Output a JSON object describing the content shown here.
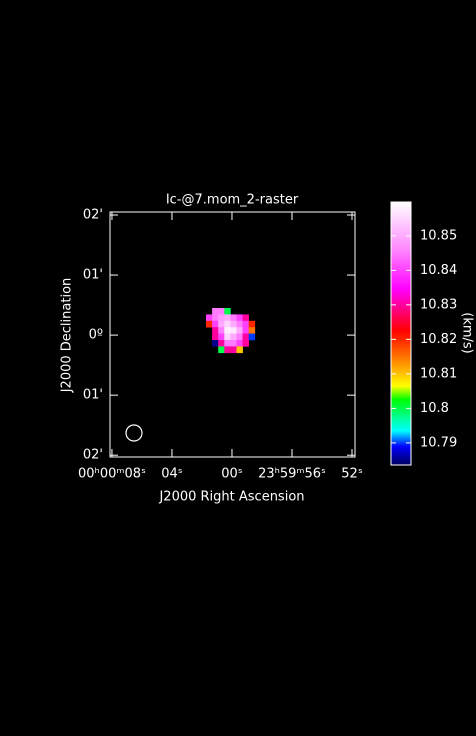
{
  "chart_data": {
    "type": "raster",
    "title": "Ic-@7.mom_2-raster",
    "x_label": "J2000 Right Ascension",
    "y_label": "J2000 Declination",
    "xlim": [
      8.13,
      -8.2
    ],
    "xticks": [
      {
        "value": 8,
        "label": "00ʰ00ᵐ08ˢ"
      },
      {
        "value": 4,
        "label": "04ˢ"
      },
      {
        "value": 0,
        "label": "00ˢ"
      },
      {
        "value": -4,
        "label": "23ʰ59ᵐ56ˢ"
      },
      {
        "value": -8,
        "label": "52ˢ"
      }
    ],
    "ylim": [
      -2.03,
      2.05
    ],
    "yticks": [
      {
        "value": 2,
        "label": "02'"
      },
      {
        "value": 1,
        "label": "01'"
      },
      {
        "value": 0,
        "label": "0º"
      },
      {
        "value": -1,
        "label": "01'"
      },
      {
        "value": -2,
        "label": "02'"
      }
    ],
    "pixels": [
      [
        null,
        10.845,
        10.845,
        10.8,
        null,
        null,
        null,
        null,
        null
      ],
      [
        10.84,
        10.845,
        10.848,
        10.85,
        10.845,
        10.84,
        10.83,
        null,
        null
      ],
      [
        10.82,
        10.84,
        10.85,
        10.855,
        10.85,
        10.845,
        10.84,
        10.82,
        null
      ],
      [
        null,
        10.83,
        10.845,
        10.858,
        10.857,
        10.85,
        10.84,
        10.815,
        null
      ],
      [
        null,
        10.83,
        10.84,
        10.855,
        10.85,
        10.845,
        10.83,
        10.79,
        null
      ],
      [
        null,
        10.785,
        10.83,
        10.845,
        10.845,
        10.84,
        10.83,
        null,
        null
      ],
      [
        null,
        null,
        10.8,
        10.83,
        10.83,
        10.81,
        null,
        null,
        null
      ]
    ],
    "colorbar": {
      "label": "(km/s)",
      "lim": [
        10.7836,
        10.8598
      ],
      "ticks": [
        10.85,
        10.84,
        10.83,
        10.82,
        10.81,
        10.8,
        10.79
      ]
    },
    "colormap": [
      {
        "at": 0,
        "color": "#000060"
      },
      {
        "at": 0.07,
        "color": "#0000ff"
      },
      {
        "at": 0.13,
        "color": "#00ffff"
      },
      {
        "at": 0.25,
        "color": "#00ff00"
      },
      {
        "at": 0.3,
        "color": "#ffff00"
      },
      {
        "at": 0.38,
        "color": "#ff9900"
      },
      {
        "at": 0.51,
        "color": "#ff0000"
      },
      {
        "at": 0.67,
        "color": "#ff00ff"
      },
      {
        "at": 0.82,
        "color": "#ff88ff"
      },
      {
        "at": 1,
        "color": "#ffffff"
      }
    ]
  }
}
